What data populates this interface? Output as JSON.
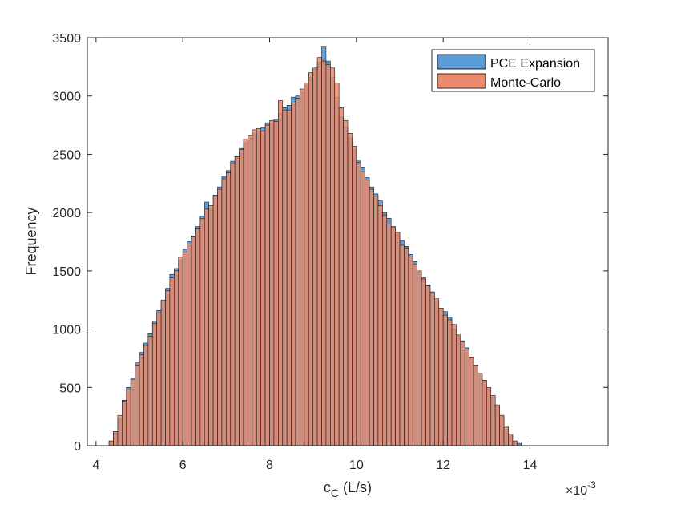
{
  "chart_data": {
    "type": "bar",
    "subtype": "overlaid-histogram",
    "title": "",
    "xlabel": "c",
    "xlabel_subscript": "C",
    "xlabel_unit": " (L/s)",
    "ylabel": "Frequency",
    "x_multiplier_text": "×10",
    "x_multiplier_exponent": "-3",
    "xlim": [
      3.8,
      15.8
    ],
    "ylim": [
      0,
      3500
    ],
    "xticks": [
      4,
      6,
      8,
      10,
      12,
      14
    ],
    "yticks": [
      0,
      500,
      1000,
      1500,
      2000,
      2500,
      3000,
      3500
    ],
    "grid": false,
    "legend_position": "top-right",
    "bin_start": 4.3,
    "bin_width": 0.1,
    "series": [
      {
        "name": "PCE Expansion",
        "color": "#5B9BD5",
        "values": [
          40,
          120,
          230,
          390,
          500,
          580,
          710,
          800,
          880,
          960,
          1070,
          1160,
          1250,
          1350,
          1470,
          1520,
          1590,
          1680,
          1750,
          1800,
          1880,
          1970,
          2090,
          2040,
          2150,
          2220,
          2310,
          2360,
          2440,
          2480,
          2550,
          2600,
          2640,
          2680,
          2700,
          2730,
          2770,
          2760,
          2800,
          2850,
          2900,
          2920,
          2990,
          3000,
          3030,
          3090,
          3160,
          3230,
          3290,
          3420,
          3300,
          3160,
          2990,
          2820,
          2730,
          2640,
          2540,
          2450,
          2390,
          2300,
          2220,
          2160,
          2100,
          2000,
          1950,
          1880,
          1830,
          1760,
          1710,
          1640,
          1580,
          1490,
          1440,
          1380,
          1320,
          1240,
          1180,
          1150,
          1100,
          1000,
          940,
          900,
          840,
          760,
          690,
          620,
          560,
          490,
          420,
          340,
          250,
          160,
          100,
          40,
          20
        ]
      },
      {
        "name": "Monte-Carlo",
        "color": "#E8896B",
        "values": [
          40,
          120,
          260,
          380,
          480,
          570,
          690,
          780,
          860,
          940,
          1050,
          1140,
          1240,
          1330,
          1440,
          1500,
          1620,
          1660,
          1730,
          1790,
          1860,
          1950,
          2030,
          2060,
          2140,
          2200,
          2290,
          2340,
          2420,
          2480,
          2540,
          2630,
          2660,
          2710,
          2720,
          2700,
          2750,
          2790,
          2780,
          2960,
          2880,
          2880,
          2940,
          2980,
          3060,
          3110,
          3200,
          3240,
          3330,
          3300,
          3270,
          3240,
          3110,
          2900,
          2790,
          2680,
          2570,
          2430,
          2350,
          2280,
          2200,
          2140,
          2060,
          1980,
          1900,
          1870,
          1830,
          1720,
          1690,
          1620,
          1560,
          1500,
          1430,
          1370,
          1310,
          1260,
          1180,
          1120,
          1080,
          1040,
          950,
          890,
          830,
          760,
          690,
          620,
          560,
          500,
          430,
          350,
          260,
          170,
          100,
          40,
          0
        ]
      }
    ]
  }
}
